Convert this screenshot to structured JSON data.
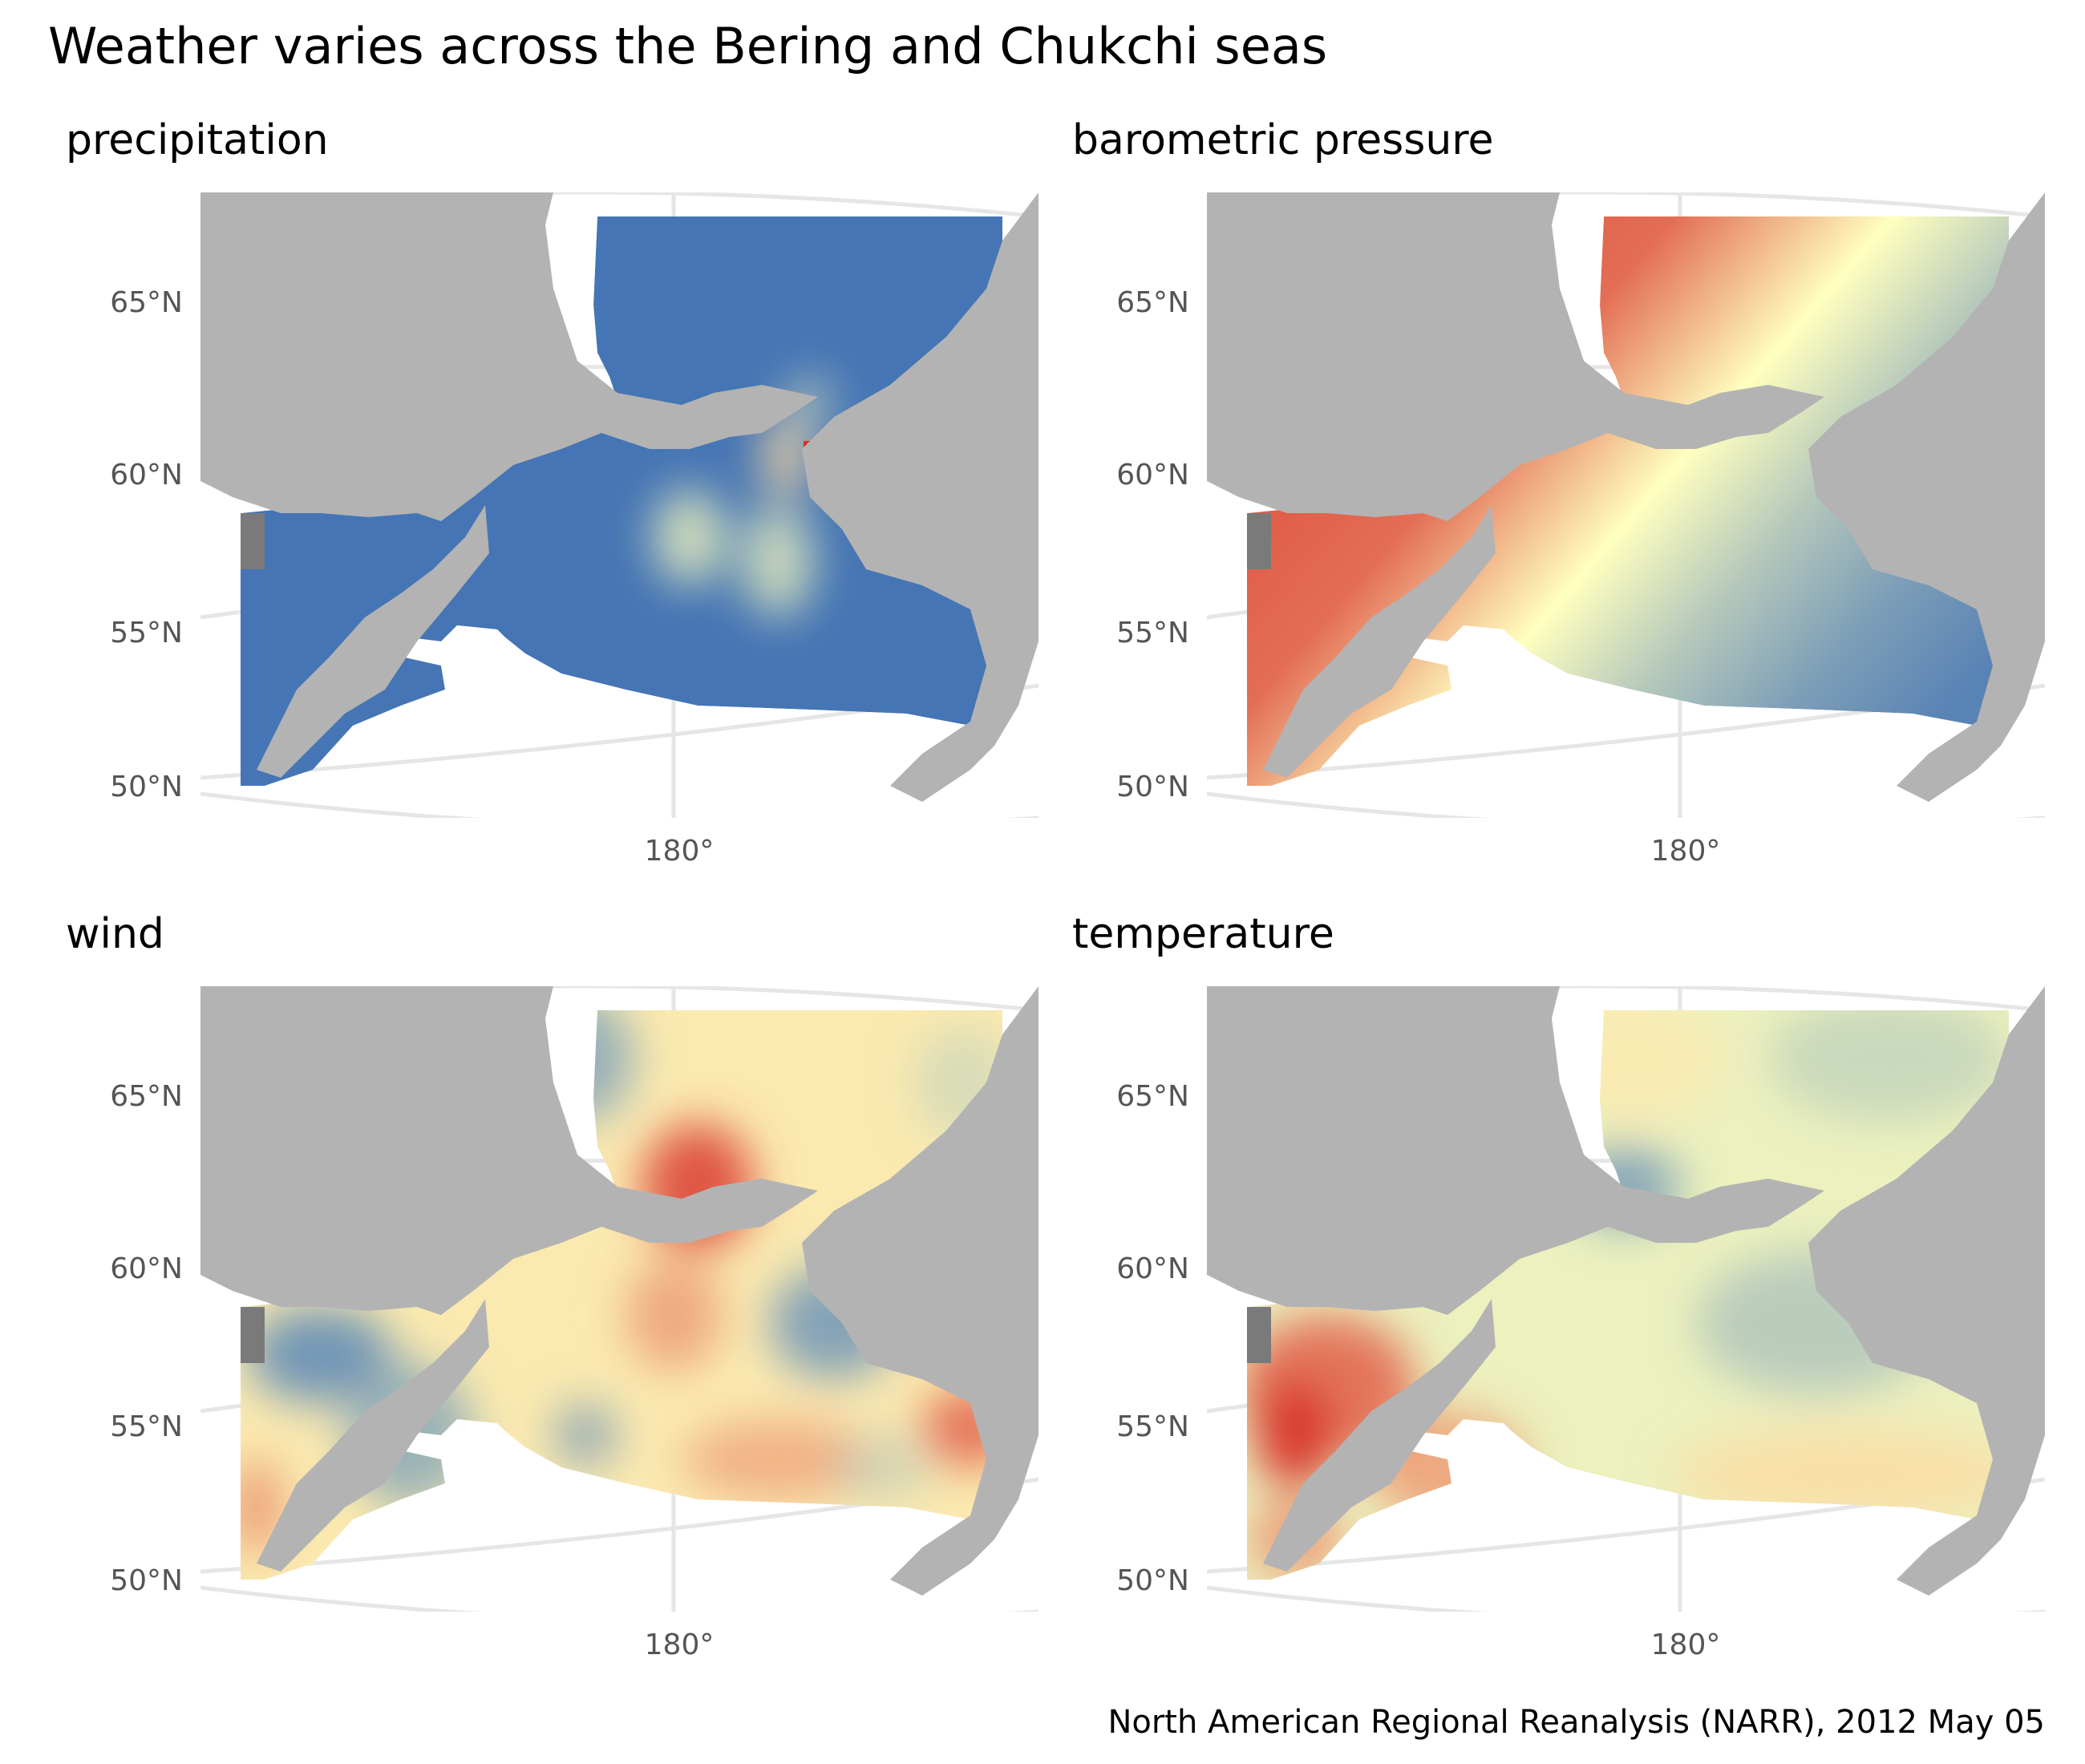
{
  "title": "Weather varies across the Bering and Chukchi seas",
  "caption": "North American Regional Reanalysis (NARR), 2012 May 05",
  "axes": {
    "lat_labels": [
      "65°N",
      "60°N",
      "55°N",
      "50°N"
    ],
    "lon_label": "180°"
  },
  "colors": {
    "land": "#b3b3b3",
    "land_dark": "#7a7a7a",
    "graticule": "#e6e6e6",
    "low": "#4575b4",
    "mid": "#ffffbf",
    "high": "#d73027"
  },
  "panels": [
    {
      "id": "precipitation",
      "title": "precipitation"
    },
    {
      "id": "pressure",
      "title": "barometric pressure"
    },
    {
      "id": "wind",
      "title": "wind"
    },
    {
      "id": "temperature",
      "title": "temperature"
    }
  ]
}
